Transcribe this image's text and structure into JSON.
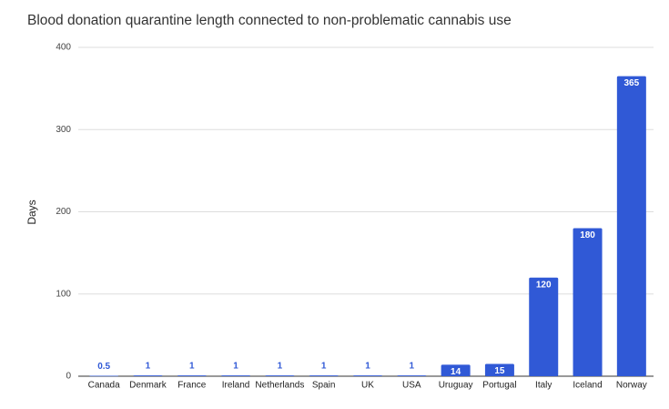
{
  "chart_data": {
    "type": "bar",
    "title": "Blood donation quarantine length connected to non-problematic cannabis use",
    "y_label": "Days",
    "categories": [
      "Canada",
      "Denmark",
      "France",
      "Ireland",
      "Netherlands",
      "Spain",
      "UK",
      "USA",
      "Uruguay",
      "Portugal",
      "Italy",
      "Iceland",
      "Norway"
    ],
    "values": [
      0.5,
      1,
      1,
      1,
      1,
      1,
      1,
      1,
      14,
      15,
      120,
      180,
      365
    ],
    "color": "#3059d6",
    "ylim": [
      0,
      400
    ],
    "yticks": [
      0,
      100,
      200,
      300,
      400
    ],
    "grid": true
  }
}
